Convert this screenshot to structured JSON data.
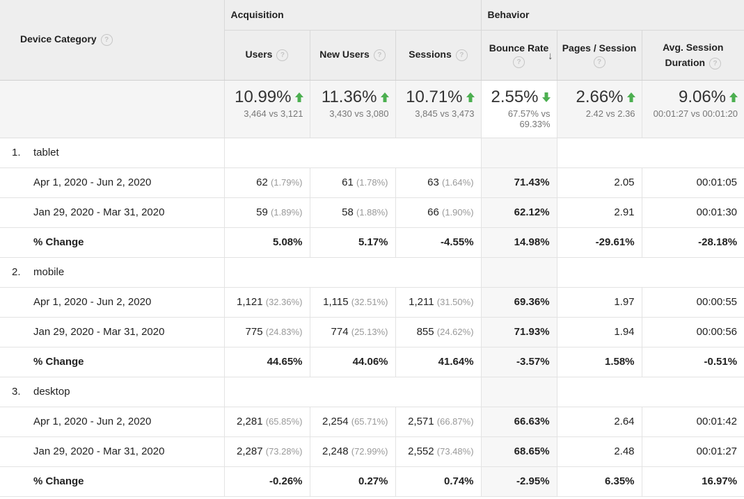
{
  "header": {
    "dimension": "Device Category",
    "groups": {
      "acquisition": "Acquisition",
      "behavior": "Behavior"
    },
    "columns": [
      "Users",
      "New Users",
      "Sessions",
      "Bounce Rate",
      "Pages / Session",
      "Avg. Session Duration"
    ],
    "help_glyph": "?"
  },
  "totals": [
    {
      "value": "10.99%",
      "dir": "up",
      "compare": "3,464 vs 3,121"
    },
    {
      "value": "11.36%",
      "dir": "up",
      "compare": "3,430 vs 3,080"
    },
    {
      "value": "10.71%",
      "dir": "up",
      "compare": "3,845 vs 3,473"
    },
    {
      "value": "2.55%",
      "dir": "down",
      "compare": "67.57% vs 69.33%"
    },
    {
      "value": "2.66%",
      "dir": "up",
      "compare": "2.42 vs 2.36"
    },
    {
      "value": "9.06%",
      "dir": "up",
      "compare": "00:01:27 vs 00:01:20"
    }
  ],
  "colors": {
    "up": "#4caf50",
    "down": "#4caf50"
  },
  "groups": [
    {
      "index": "1.",
      "name": "tablet",
      "rows": [
        {
          "label": "Apr 1, 2020 - Jun 2, 2020",
          "users": "62",
          "users_pct": "(1.79%)",
          "new_users": "61",
          "new_users_pct": "(1.78%)",
          "sessions": "63",
          "sessions_pct": "(1.64%)",
          "bounce": "71.43%",
          "pages": "2.05",
          "duration": "00:01:05"
        },
        {
          "label": "Jan 29, 2020 - Mar 31, 2020",
          "users": "59",
          "users_pct": "(1.89%)",
          "new_users": "58",
          "new_users_pct": "(1.88%)",
          "sessions": "66",
          "sessions_pct": "(1.90%)",
          "bounce": "62.12%",
          "pages": "2.91",
          "duration": "00:01:30"
        }
      ],
      "change": {
        "label": "% Change",
        "users": "5.08%",
        "new_users": "5.17%",
        "sessions": "-4.55%",
        "bounce": "14.98%",
        "pages": "-29.61%",
        "duration": "-28.18%"
      }
    },
    {
      "index": "2.",
      "name": "mobile",
      "rows": [
        {
          "label": "Apr 1, 2020 - Jun 2, 2020",
          "users": "1,121",
          "users_pct": "(32.36%)",
          "new_users": "1,115",
          "new_users_pct": "(32.51%)",
          "sessions": "1,211",
          "sessions_pct": "(31.50%)",
          "bounce": "69.36%",
          "pages": "1.97",
          "duration": "00:00:55"
        },
        {
          "label": "Jan 29, 2020 - Mar 31, 2020",
          "users": "775",
          "users_pct": "(24.83%)",
          "new_users": "774",
          "new_users_pct": "(25.13%)",
          "sessions": "855",
          "sessions_pct": "(24.62%)",
          "bounce": "71.93%",
          "pages": "1.94",
          "duration": "00:00:56"
        }
      ],
      "change": {
        "label": "% Change",
        "users": "44.65%",
        "new_users": "44.06%",
        "sessions": "41.64%",
        "bounce": "-3.57%",
        "pages": "1.58%",
        "duration": "-0.51%"
      }
    },
    {
      "index": "3.",
      "name": "desktop",
      "rows": [
        {
          "label": "Apr 1, 2020 - Jun 2, 2020",
          "users": "2,281",
          "users_pct": "(65.85%)",
          "new_users": "2,254",
          "new_users_pct": "(65.71%)",
          "sessions": "2,571",
          "sessions_pct": "(66.87%)",
          "bounce": "66.63%",
          "pages": "2.64",
          "duration": "00:01:42"
        },
        {
          "label": "Jan 29, 2020 - Mar 31, 2020",
          "users": "2,287",
          "users_pct": "(73.28%)",
          "new_users": "2,248",
          "new_users_pct": "(72.99%)",
          "sessions": "2,552",
          "sessions_pct": "(73.48%)",
          "bounce": "68.65%",
          "pages": "2.48",
          "duration": "00:01:27"
        }
      ],
      "change": {
        "label": "% Change",
        "users": "-0.26%",
        "new_users": "0.27%",
        "sessions": "0.74%",
        "bounce": "-2.95%",
        "pages": "6.35%",
        "duration": "16.97%"
      }
    }
  ]
}
